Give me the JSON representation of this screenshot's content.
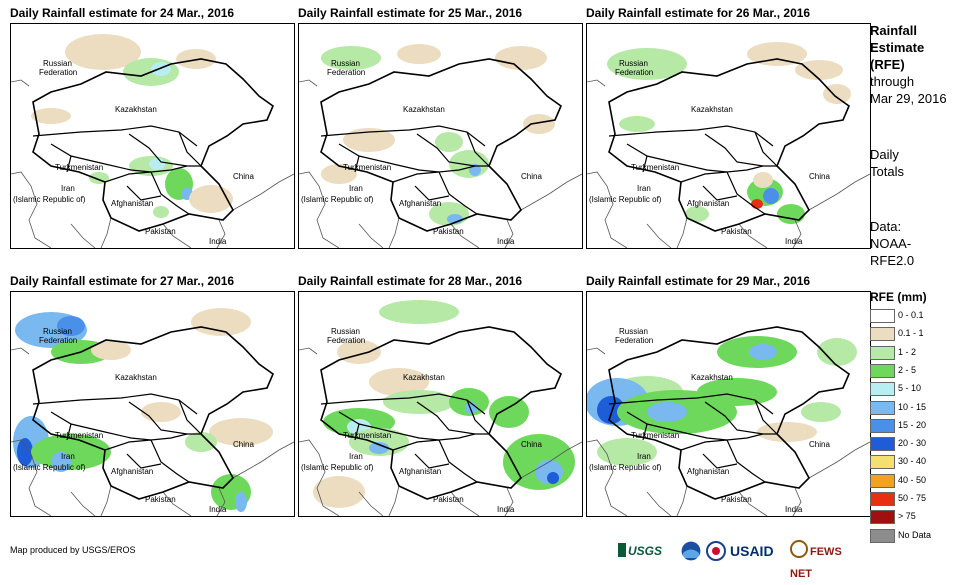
{
  "panels": [
    {
      "title": "Daily Rainfall estimate for 24 Mar., 2016"
    },
    {
      "title": "Daily Rainfall estimate for 25 Mar., 2016"
    },
    {
      "title": "Daily Rainfall estimate for 26 Mar., 2016"
    },
    {
      "title": "Daily Rainfall estimate for 27 Mar., 2016"
    },
    {
      "title": "Daily Rainfall estimate for 28 Mar., 2016"
    },
    {
      "title": "Daily Rainfall estimate for 29 Mar., 2016"
    }
  ],
  "map_labels": {
    "russia_1": "Russian",
    "russia_2": "Federation",
    "kazakhstan": "Kazakhstan",
    "turkmenistan": "Turkmenistan",
    "china": "China",
    "iran_1": "Iran",
    "iran_2": "(Islamic Republic of)",
    "afghanistan": "Afghanistan",
    "pakistan": "Pakistan",
    "india": "India"
  },
  "sidebar": {
    "title_1": "Rainfall",
    "title_2": "Estimate",
    "title_3": "(RFE)",
    "through": "through",
    "date": "Mar 29, 2016",
    "daily": "Daily",
    "totals": "Totals",
    "data_label": "Data:",
    "data_1": "NOAA-",
    "data_2": "RFE2.0"
  },
  "legend": {
    "title": "RFE (mm)",
    "items": [
      {
        "label": "0 - 0.1",
        "color": "#ffffff"
      },
      {
        "label": "0.1 - 1",
        "color": "#ecdcc0"
      },
      {
        "label": "1 - 2",
        "color": "#b6e8a6"
      },
      {
        "label": "2 - 5",
        "color": "#6ed85c"
      },
      {
        "label": "5 - 10",
        "color": "#b8eef2"
      },
      {
        "label": "10 - 15",
        "color": "#7ab8f0"
      },
      {
        "label": "15 - 20",
        "color": "#4a90e8"
      },
      {
        "label": "20 - 30",
        "color": "#1e5cd8"
      },
      {
        "label": "30 - 40",
        "color": "#f4e070"
      },
      {
        "label": "40 - 50",
        "color": "#f4a020"
      },
      {
        "label": "50 - 75",
        "color": "#e83010"
      },
      {
        "label": "> 75",
        "color": "#a01010"
      },
      {
        "label": "No Data",
        "color": "#8c8c8c"
      }
    ]
  },
  "footer": {
    "credit": "Map produced by USGS/EROS",
    "logo_usgs": "USGS",
    "logo_usaid": "USAID",
    "logo_fews": "FEWS NET"
  }
}
